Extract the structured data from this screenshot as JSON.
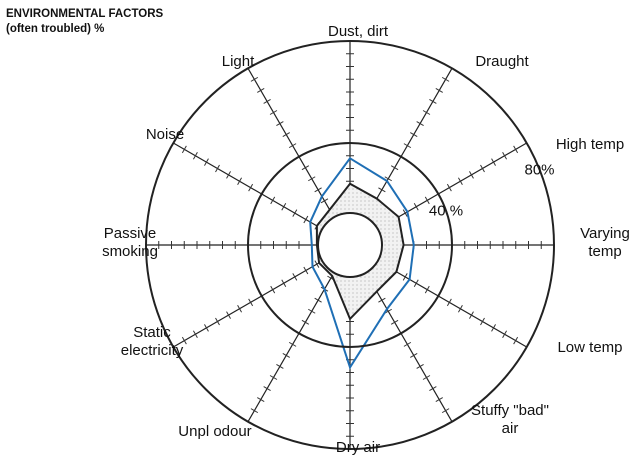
{
  "chart_data": {
    "type": "radar",
    "title": "ENVIRONMENTAL FACTORS",
    "subtitle": "(often troubled) %",
    "categories": [
      "Dust, dirt",
      "Draught",
      "High temp",
      "Varying temp",
      "Low temp",
      "Stuffy \"bad\" air",
      "Dry air",
      "Unpl odour",
      "Static electricity",
      "Passive smoking",
      "Noise",
      "Light"
    ],
    "series": [
      {
        "color": "#1f6fb5",
        "values": [
          34,
          29,
          26,
          25,
          27,
          29,
          48,
          20,
          17,
          15,
          18,
          22
        ]
      },
      {
        "color": "#222222",
        "values": [
          24,
          21,
          22,
          21,
          21,
          21,
          29,
          14,
          14,
          13,
          15,
          16
        ]
      }
    ],
    "rlim": [
      0,
      80
    ],
    "rticks": [
      {
        "value": 40,
        "label": "40 %"
      },
      {
        "value": 80,
        "label": "80%"
      }
    ]
  }
}
